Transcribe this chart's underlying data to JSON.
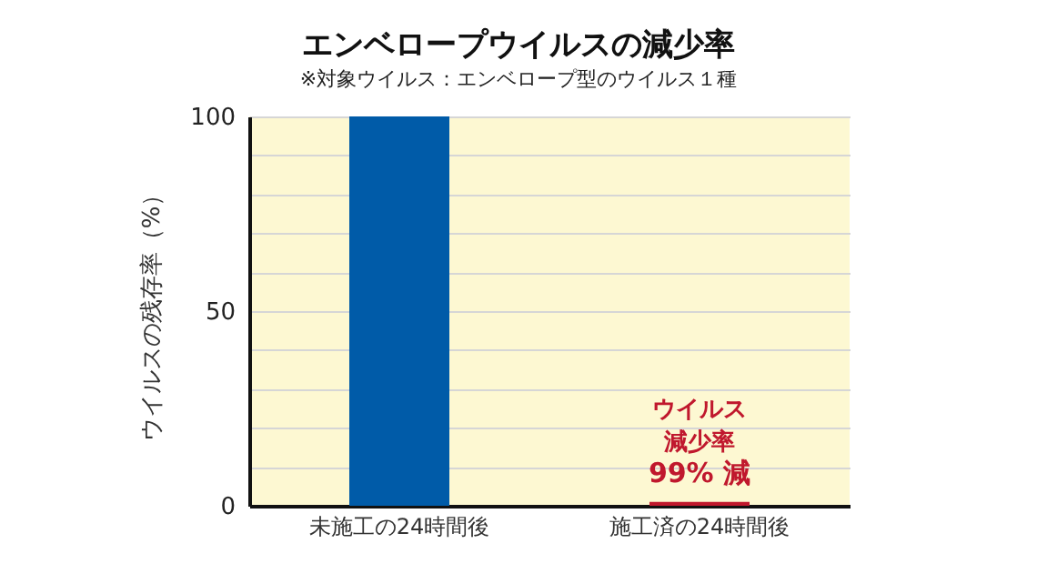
{
  "chart_data": {
    "type": "bar",
    "title": "エンベロープウイルスの減少率",
    "subtitle": "※対象ウイルス：エンベロープ型のウイルス１種",
    "ylabel": "ウイルスの残存率（%）",
    "categories": [
      "未施工の24時間後",
      "施工済の24時間後"
    ],
    "values": [
      100,
      1
    ],
    "colors": [
      "#005ba8",
      "#c0182d"
    ],
    "ylim": [
      0,
      100
    ],
    "yticks": [
      0,
      {
        "value": 10,
        "label": null
      },
      {
        "value": 20,
        "label": null
      },
      {
        "value": 30,
        "label": null
      },
      {
        "value": 40,
        "label": null
      },
      50,
      {
        "value": 60,
        "label": null
      },
      {
        "value": 70,
        "label": null
      },
      {
        "value": 80,
        "label": null
      },
      {
        "value": 90,
        "label": null
      },
      100
    ],
    "grid": "y",
    "annotations": [
      "ウイルス",
      "減少率",
      "99% 減"
    ]
  }
}
